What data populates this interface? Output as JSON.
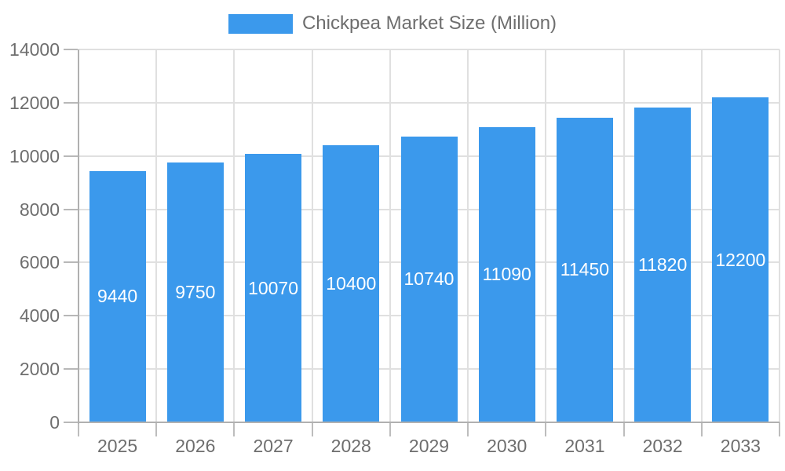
{
  "chart_data": {
    "type": "bar",
    "title": "Chickpea Market Size (Million)",
    "series_name": "Chickpea Market Size (Million)",
    "categories": [
      "2025",
      "2026",
      "2027",
      "2028",
      "2029",
      "2030",
      "2031",
      "2032",
      "2033"
    ],
    "values": [
      9440,
      9750,
      10070,
      10400,
      10740,
      11090,
      11450,
      11820,
      12200
    ],
    "value_labels_visible": true,
    "xlabel": "",
    "ylabel": "",
    "ylim": [
      0,
      14000
    ],
    "yticks": [
      0,
      2000,
      4000,
      6000,
      8000,
      10000,
      12000,
      14000
    ],
    "grid": "both",
    "legend_position": "top",
    "colors": {
      "bar": "#3b99ec",
      "value_label": "#ffffff",
      "axis_line": "#b0b0b0",
      "gridline": "#e0e0e0",
      "tick_label": "#6e6e6e",
      "legend_text": "#6e6e6e",
      "background": "#ffffff"
    }
  }
}
